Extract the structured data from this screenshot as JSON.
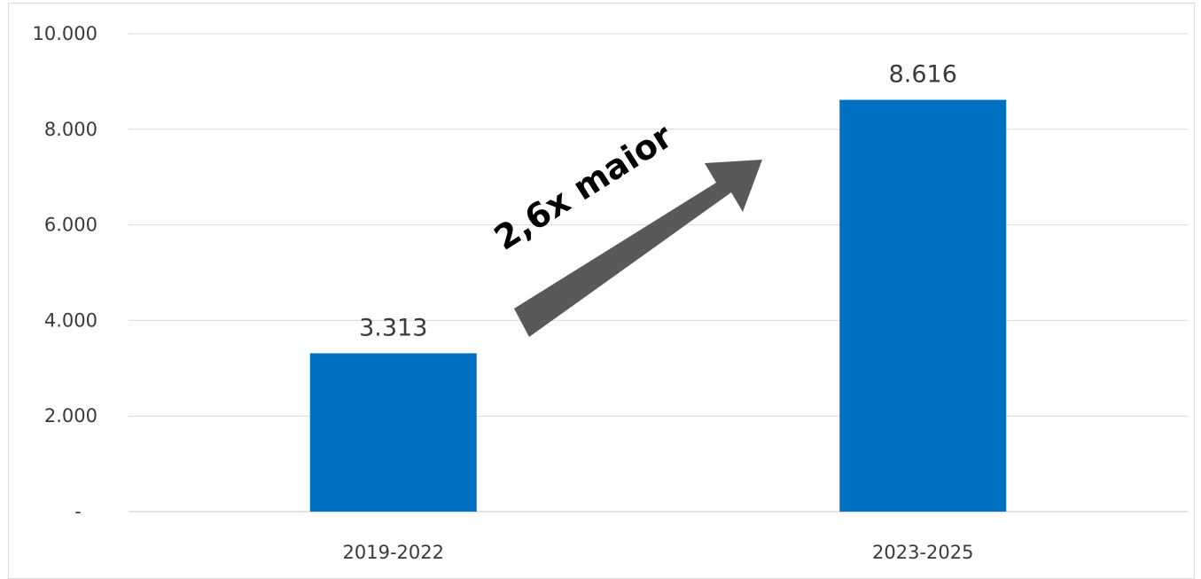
{
  "chart_data": {
    "type": "bar",
    "categories": [
      "2019-2022",
      "2023-2025"
    ],
    "values": [
      3313,
      8616
    ],
    "data_labels": [
      "3.313",
      "8.616"
    ],
    "title": "",
    "xlabel": "",
    "ylabel": "",
    "ylim": [
      0,
      10000
    ],
    "y_ticks": [
      0,
      2000,
      4000,
      6000,
      8000,
      10000
    ],
    "y_tick_labels": [
      "-",
      "2.000",
      "4.000",
      "6.000",
      "8.000",
      "10.000"
    ],
    "grid": "horizontal",
    "legend": "none",
    "bar_color": "#0070c0",
    "annotation": {
      "text": "2,6x maior",
      "arrow_color": "#595959",
      "direction": "up-right"
    }
  }
}
